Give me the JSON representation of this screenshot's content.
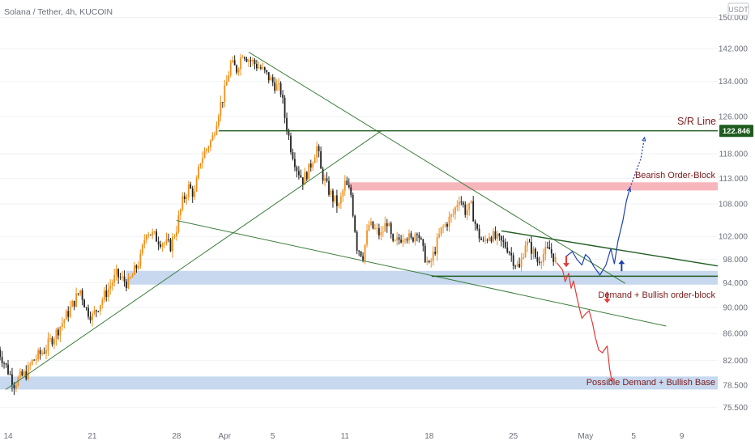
{
  "chart_data": {
    "type": "candlestick",
    "title": "Solana / Tether, 4h, KUCOIN",
    "currency": "USDT",
    "y_scale": "log",
    "ylim": [
      73.5,
      152
    ],
    "y_ticks": [
      150.0,
      142.0,
      134.0,
      126.0,
      118.0,
      113.0,
      108.0,
      102.0,
      98.0,
      94.0,
      90.0,
      86.0,
      82.0,
      78.5,
      75.5
    ],
    "y_tick_labels": [
      "150.000",
      "142.000",
      "134.000",
      "126.000",
      "118.000",
      "113.000",
      "108.000",
      "102.000",
      "98.000",
      "94.000",
      "90.000",
      "86.000",
      "82.000",
      "78.500",
      "75.500"
    ],
    "x_tick_labels": [
      {
        "label": "14",
        "day": 0
      },
      {
        "label": "21",
        "day": 7
      },
      {
        "label": "28",
        "day": 14
      },
      {
        "label": "Apr",
        "day": 18
      },
      {
        "label": "5",
        "day": 22
      },
      {
        "label": "11",
        "day": 28
      },
      {
        "label": "18",
        "day": 35
      },
      {
        "label": "25",
        "day": 42
      },
      {
        "label": "May",
        "day": 48
      },
      {
        "label": "5",
        "day": 52
      },
      {
        "label": "9",
        "day": 56
      }
    ],
    "price_path": [
      [
        -1,
        84.2
      ],
      [
        0,
        80.5
      ],
      [
        0.5,
        78.7
      ],
      [
        1,
        79.6
      ],
      [
        1.5,
        80.1
      ],
      [
        2,
        81.8
      ],
      [
        3,
        83.5
      ],
      [
        4,
        86.1
      ],
      [
        5,
        89.2
      ],
      [
        6,
        92.8
      ],
      [
        6.5,
        89.7
      ],
      [
        7,
        88.6
      ],
      [
        8,
        91.9
      ],
      [
        9,
        95.3
      ],
      [
        10,
        93.8
      ],
      [
        11,
        98.1
      ],
      [
        11.5,
        103.2
      ],
      [
        12.5,
        101.4
      ],
      [
        13.5,
        100.3
      ],
      [
        14,
        103.6
      ],
      [
        14.5,
        108.4
      ],
      [
        15,
        111.2
      ],
      [
        15.5,
        109.8
      ],
      [
        16,
        116.7
      ],
      [
        17,
        121.4
      ],
      [
        17.5,
        127.3
      ],
      [
        18,
        131.6
      ],
      [
        18.5,
        138.2
      ],
      [
        19,
        136.9
      ],
      [
        19.5,
        141.1
      ],
      [
        20,
        139.4
      ],
      [
        20.5,
        138.3
      ],
      [
        21,
        137.1
      ],
      [
        22,
        133.8
      ],
      [
        22.7,
        131.6
      ],
      [
        23,
        125.9
      ],
      [
        23.5,
        119.4
      ],
      [
        24,
        115.1
      ],
      [
        24.5,
        112.6
      ],
      [
        25,
        114.7
      ],
      [
        25.7,
        119.6
      ],
      [
        26,
        114.5
      ],
      [
        26.5,
        111.3
      ],
      [
        27,
        109.1
      ],
      [
        27.5,
        107.5
      ],
      [
        28,
        111.9
      ],
      [
        28.5,
        109.8
      ],
      [
        29,
        100.2
      ],
      [
        29.5,
        98.7
      ],
      [
        30,
        104.1
      ],
      [
        31,
        102.2
      ],
      [
        31.5,
        104.8
      ],
      [
        32,
        100.3
      ],
      [
        33,
        102.6
      ],
      [
        33.5,
        101.2
      ],
      [
        34,
        103.4
      ],
      [
        34.5,
        99.3
      ],
      [
        35,
        96.6
      ],
      [
        35.5,
        99.8
      ],
      [
        36,
        103.1
      ],
      [
        37,
        106.1
      ],
      [
        37.5,
        109.4
      ],
      [
        38,
        106.7
      ],
      [
        38.5,
        107.4
      ],
      [
        39,
        102.8
      ],
      [
        39.5,
        100.7
      ],
      [
        40,
        102.4
      ],
      [
        41,
        100.9
      ],
      [
        41.5,
        100.1
      ],
      [
        42,
        97.9
      ],
      [
        42.5,
        96.3
      ],
      [
        43,
        100.9
      ],
      [
        43.5,
        99.8
      ],
      [
        44,
        97.7
      ],
      [
        44.5,
        98.9
      ],
      [
        45,
        99.7
      ],
      [
        45.5,
        97.8
      ]
    ],
    "projections": [
      {
        "color": "#e53935",
        "points": [
          [
            45.6,
            97.4
          ],
          [
            46.1,
            96.1
          ],
          [
            46.3,
            94.2
          ],
          [
            46.6,
            95.6
          ],
          [
            46.8,
            93.1
          ],
          [
            47.0,
            94.3
          ],
          [
            47.4,
            90.6
          ],
          [
            47.7,
            88.3
          ],
          [
            48.0,
            89.0
          ],
          [
            48.3,
            89.5
          ],
          [
            48.6,
            87.4
          ],
          [
            48.8,
            85.5
          ],
          [
            49.1,
            83.5
          ],
          [
            49.4,
            83.1
          ],
          [
            49.8,
            84.1
          ],
          [
            50.0,
            80.8
          ],
          [
            50.2,
            79.0
          ]
        ]
      },
      {
        "color": "#1e40af",
        "points": [
          [
            46.4,
            98.5
          ],
          [
            46.9,
            99.3
          ],
          [
            47.3,
            97.9
          ],
          [
            47.7,
            97.0
          ],
          [
            48.0,
            98.8
          ],
          [
            48.3,
            98.2
          ],
          [
            48.7,
            96.7
          ],
          [
            49.2,
            95.3
          ],
          [
            49.7,
            97.0
          ],
          [
            50.1,
            99.8
          ],
          [
            50.4,
            97.2
          ],
          [
            50.7,
            101.2
          ],
          [
            51.1,
            104.8
          ],
          [
            51.4,
            108.6
          ],
          [
            51.7,
            111.1
          ]
        ]
      },
      {
        "color": "#1e40af",
        "dashed": true,
        "points": [
          [
            51.7,
            111.1
          ],
          [
            52.6,
            117.0
          ],
          [
            52.9,
            121.4
          ]
        ]
      }
    ],
    "arrows": [
      {
        "color": "#e53935",
        "direction": "down",
        "day": 46.4,
        "price": 97.6
      },
      {
        "color": "#e53935",
        "direction": "down",
        "day": 49.8,
        "price": 91.6
      },
      {
        "color": "#1e40af",
        "direction": "up",
        "day": 51.0,
        "price": 96.9
      }
    ],
    "zones": [
      {
        "type": "supply",
        "color": "#f7b6bb",
        "day_from": 28.3,
        "day_to": 60,
        "price_low": 110.6,
        "price_high": 112.2
      },
      {
        "type": "demand",
        "color": "#c7d8ef",
        "day_from": 9.8,
        "day_to": 60,
        "price_low": 93.7,
        "price_high": 96.0
      },
      {
        "type": "demand",
        "color": "#c7d8ef",
        "day_from": -1,
        "day_to": 60,
        "price_low": 77.9,
        "price_high": 79.7
      }
    ],
    "trend_lines": [
      {
        "color": "#3a7d3a",
        "from": [
          -0.2,
          77.9
        ],
        "to": [
          31.0,
          122.8
        ]
      },
      {
        "color": "#3a7d3a",
        "from": [
          20.0,
          141.1
        ],
        "to": [
          51.3,
          93.9
        ]
      },
      {
        "color": "#3a7d3a",
        "from": [
          14.0,
          104.9
        ],
        "to": [
          54.7,
          87.1
        ]
      },
      {
        "color": "#1f5c1f",
        "from": [
          41.0,
          103.0
        ],
        "to": [
          60,
          96.5
        ]
      },
      {
        "color": "#1f5c1f",
        "from": [
          35.2,
          95.1
        ],
        "to": [
          60,
          95.1
        ]
      },
      {
        "color": "#1f5c1f",
        "from": [
          17.5,
          122.846
        ],
        "to": [
          60,
          122.846
        ]
      }
    ],
    "sr_level": {
      "value": 122.846,
      "label": "122.846",
      "color": "#1e5c1e"
    },
    "annotations": [
      {
        "id": "sr",
        "text": "S/R Line"
      },
      {
        "id": "bearish",
        "text": "Bearish Order-Block"
      },
      {
        "id": "demand",
        "text": "Demand + Bullish order-block"
      },
      {
        "id": "base",
        "text": "Possible Demand + Bullish Base"
      }
    ],
    "colors": {
      "up": "#f0901c",
      "down": "#202020",
      "grid": "#f0f2f5",
      "axis_text": "#6b6f7a"
    }
  }
}
